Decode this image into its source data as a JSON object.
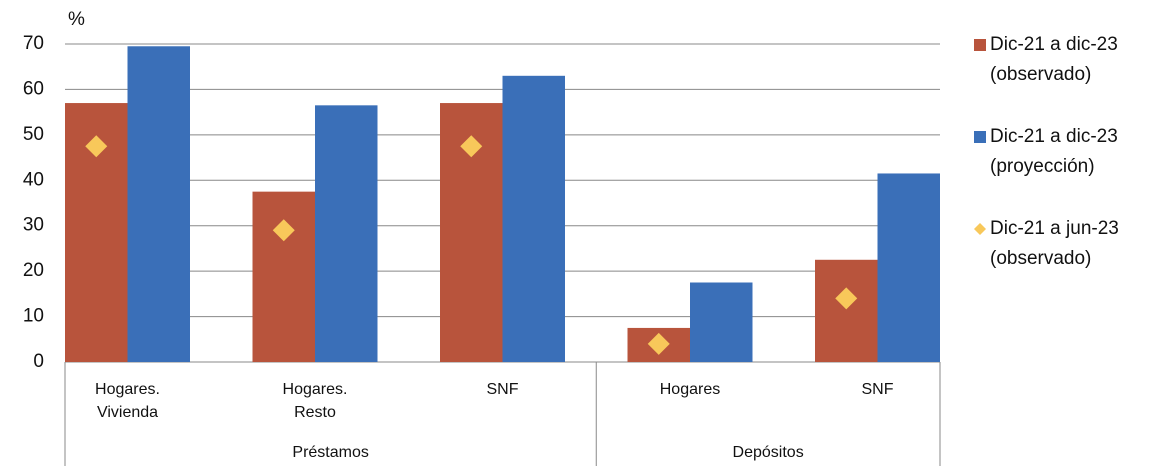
{
  "chart_data": {
    "type": "bar",
    "unit_label": "%",
    "categories": [
      [
        "Hogares.",
        "Vivienda"
      ],
      [
        "Hogares.",
        "Resto"
      ],
      [
        "SNF"
      ],
      [
        "Hogares"
      ],
      [
        "SNF"
      ]
    ],
    "category_groups": [
      "Préstamos",
      "Préstamos",
      "Préstamos",
      "Depósitos",
      "Depósitos"
    ],
    "series": [
      {
        "name": [
          "Dic-21 a dic-23",
          "(observado)"
        ],
        "color": "#b8543c",
        "type": "bar",
        "values": [
          57,
          37.5,
          57,
          7.5,
          22.5
        ]
      },
      {
        "name": [
          "Dic-21 a dic-23",
          "(proyección)"
        ],
        "color": "#3a6fb8",
        "type": "bar",
        "values": [
          69.5,
          56.5,
          63,
          17.5,
          41.5
        ]
      },
      {
        "name": [
          "Dic-21 a jun-23",
          "(observado)"
        ],
        "color": "#f8c85a",
        "type": "scatter",
        "values": [
          47.5,
          29,
          47.5,
          4,
          14
        ]
      }
    ],
    "ylim": [
      0,
      70
    ],
    "yticks": [
      0,
      10,
      20,
      30,
      40,
      50,
      60,
      70
    ],
    "grid": true
  }
}
